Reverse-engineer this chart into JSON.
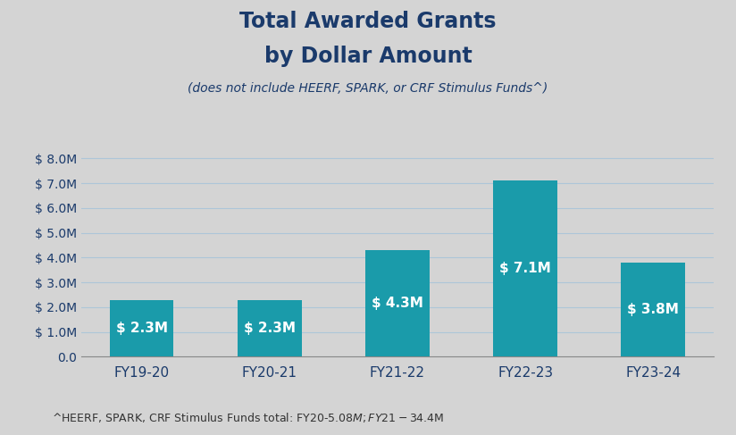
{
  "categories": [
    "FY19-20",
    "FY20-21",
    "FY21-22",
    "FY22-23",
    "FY23-24"
  ],
  "values": [
    2.3,
    2.3,
    4.3,
    7.1,
    3.8
  ],
  "bar_labels": [
    "$ 2.3M",
    "$ 2.3M",
    "$ 4.3M",
    "$ 7.1M",
    "$ 3.8M"
  ],
  "bar_color": "#1a9baa",
  "background_color": "#d4d4d4",
  "title_line1": "Total Awarded Grants",
  "title_line2": "by Dollar Amount",
  "subtitle": "(does not include HEERF, SPARK, or CRF Stimulus Funds^)",
  "footnote": "^HEERF, SPARK, CRF Stimulus Funds total: FY20-$5.08M; FY21-$34.4M",
  "title_color": "#1a3a6b",
  "subtitle_color": "#1a3a6b",
  "footnote_color": "#333333",
  "tick_label_color": "#1a3a6b",
  "yticks": [
    0.0,
    1.0,
    2.0,
    3.0,
    4.0,
    5.0,
    6.0,
    7.0,
    8.0
  ],
  "ylim": [
    0,
    8.6
  ],
  "grid_color": "#adc6d8",
  "bar_label_fontsize": 11,
  "bar_label_color": "#ffffff",
  "title_fontsize1": 17,
  "title_fontsize2": 17,
  "subtitle_fontsize": 10,
  "tick_fontsize": 10,
  "xtick_fontsize": 11,
  "footnote_fontsize": 9
}
